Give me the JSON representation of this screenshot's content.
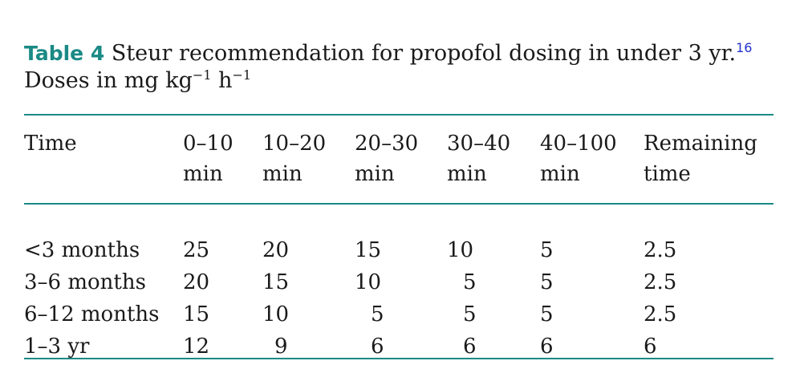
{
  "caption": {
    "label": "Table 4",
    "title": "Steur recommendation for propofol dosing in under 3 yr.",
    "ref": "16",
    "units_prefix": "Doses in mg kg",
    "units_exp1": "−1",
    "units_mid": " h",
    "units_exp2": "−1"
  },
  "table": {
    "headers": [
      {
        "line1": "Time",
        "line2": ""
      },
      {
        "line1": "0–10",
        "line2": "min"
      },
      {
        "line1": "10–20",
        "line2": "min"
      },
      {
        "line1": "20–30",
        "line2": "min"
      },
      {
        "line1": "30–40",
        "line2": "min"
      },
      {
        "line1": "40–100",
        "line2": "min"
      },
      {
        "line1": "Remaining",
        "line2": "time"
      }
    ],
    "rows": [
      [
        "<3 months",
        "25",
        "20",
        "15",
        "10",
        "5",
        "2.5"
      ],
      [
        "3–6 months",
        "20",
        "15",
        "10",
        "5",
        "5",
        "2.5"
      ],
      [
        "6–12 months",
        "15",
        "10",
        "5",
        "5",
        "5",
        "2.5"
      ],
      [
        "1–3 yr",
        "12",
        "9",
        "6",
        "6",
        "6",
        "6"
      ]
    ]
  },
  "colors": {
    "accent": "#1a8a85",
    "ref_link": "#2233cc",
    "text": "#1a1a1a"
  }
}
